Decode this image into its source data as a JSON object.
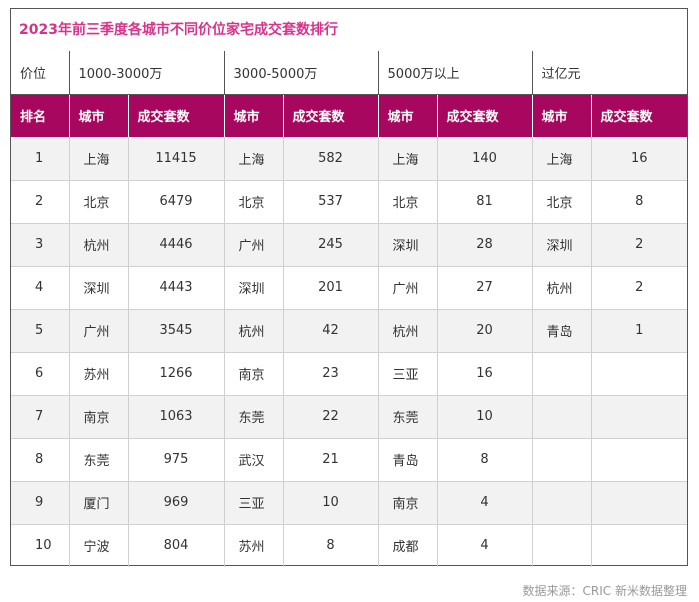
{
  "title": "2023年前三季度各城市不同价位家宅成交套数排行",
  "price_row": {
    "label": "价位",
    "ranges": [
      "1000-3000万",
      "3000-5000万",
      "5000万以上",
      "过亿元"
    ]
  },
  "header": {
    "rank": "排名",
    "city": "城市",
    "count": "成交套数"
  },
  "rows": [
    {
      "rank": "1",
      "cells": [
        [
          "上海",
          "11415"
        ],
        [
          "上海",
          "582"
        ],
        [
          "上海",
          "140"
        ],
        [
          "上海",
          "16"
        ]
      ]
    },
    {
      "rank": "2",
      "cells": [
        [
          "北京",
          "6479"
        ],
        [
          "北京",
          "537"
        ],
        [
          "北京",
          "81"
        ],
        [
          "北京",
          "8"
        ]
      ]
    },
    {
      "rank": "3",
      "cells": [
        [
          "杭州",
          "4446"
        ],
        [
          "广州",
          "245"
        ],
        [
          "深圳",
          "28"
        ],
        [
          "深圳",
          "2"
        ]
      ]
    },
    {
      "rank": "4",
      "cells": [
        [
          "深圳",
          "4443"
        ],
        [
          "深圳",
          "201"
        ],
        [
          "广州",
          "27"
        ],
        [
          "杭州",
          "2"
        ]
      ]
    },
    {
      "rank": "5",
      "cells": [
        [
          "广州",
          "3545"
        ],
        [
          "杭州",
          "42"
        ],
        [
          "杭州",
          "20"
        ],
        [
          "青岛",
          "1"
        ]
      ]
    },
    {
      "rank": "6",
      "cells": [
        [
          "苏州",
          "1266"
        ],
        [
          "南京",
          "23"
        ],
        [
          "三亚",
          "16"
        ],
        [
          "",
          ""
        ]
      ]
    },
    {
      "rank": "7",
      "cells": [
        [
          "南京",
          "1063"
        ],
        [
          "东莞",
          "22"
        ],
        [
          "东莞",
          "10"
        ],
        [
          "",
          ""
        ]
      ]
    },
    {
      "rank": "8",
      "cells": [
        [
          "东莞",
          "975"
        ],
        [
          "武汉",
          "21"
        ],
        [
          "青岛",
          "8"
        ],
        [
          "",
          ""
        ]
      ]
    },
    {
      "rank": "9",
      "cells": [
        [
          "厦门",
          "969"
        ],
        [
          "三亚",
          "10"
        ],
        [
          "南京",
          "4"
        ],
        [
          "",
          ""
        ]
      ]
    },
    {
      "rank": "10",
      "cells": [
        [
          "宁波",
          "804"
        ],
        [
          "苏州",
          "8"
        ],
        [
          "成都",
          "4"
        ],
        [
          "",
          ""
        ]
      ]
    }
  ],
  "source": "数据来源：CRIC 新米数据整理",
  "colors": {
    "title": "#d6338b",
    "header_bg": "#a8075f",
    "header_text": "#ffffff",
    "alt_row_bg": "#f2f2f2"
  }
}
